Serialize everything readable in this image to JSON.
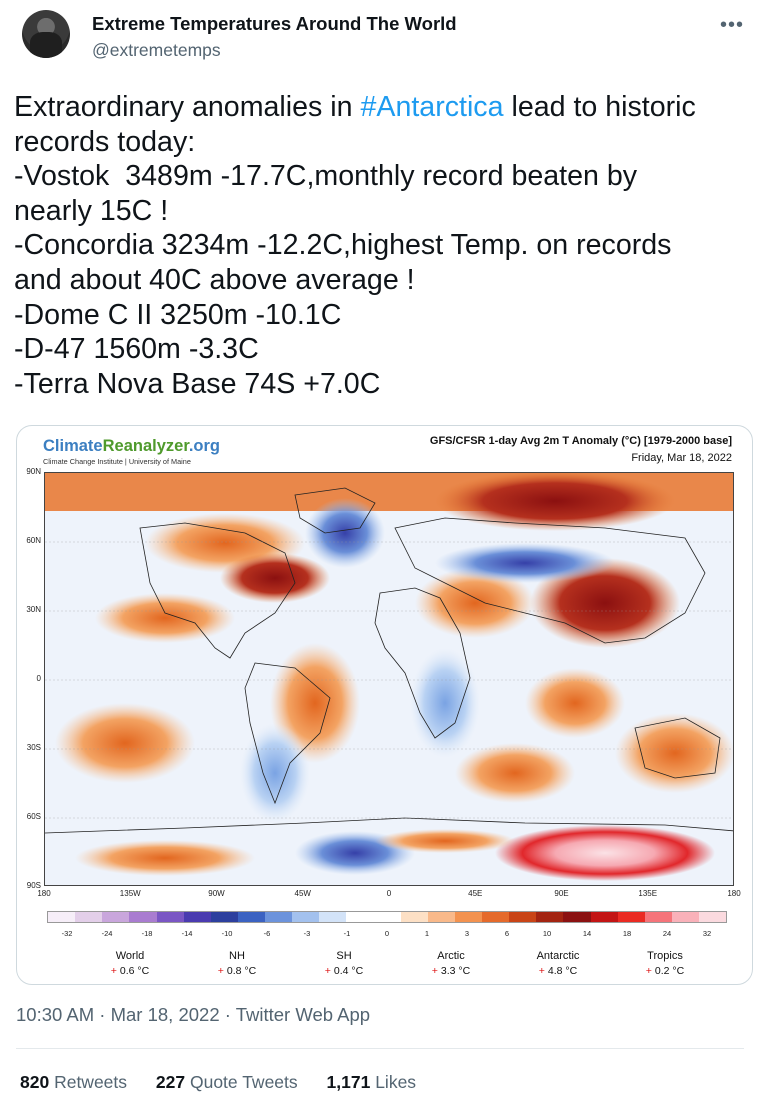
{
  "tweet": {
    "display_name": "Extreme Temperatures Around The World",
    "handle": "@extremetemps",
    "more_icon": "more-horizontal-icon",
    "text_lines": [
      {
        "before": "Extraordinary anomalies in ",
        "hashtag": "#Antarctica",
        "after": " lead to historic"
      },
      {
        "text": "records today:"
      },
      {
        "text": "-Vostok  3489m -17.7C,monthly record beaten by"
      },
      {
        "text": "nearly 15C !"
      },
      {
        "text": "-Concordia 3234m -12.2C,highest Temp. on records"
      },
      {
        "text": "and about 40C above average !"
      },
      {
        "text": "-Dome C II 3250m -10.1C"
      },
      {
        "text": "-D-47 1560m -3.3C"
      },
      {
        "text": "-Terra Nova Base 74S +7.0C"
      }
    ],
    "timestamp": "10:30 AM · Mar 18, 2022 · Twitter Web App",
    "metrics": {
      "retweets_count": "820",
      "retweets_label": "Retweets",
      "quotes_count": "227",
      "quotes_label": "Quote Tweets",
      "likes_count": "1,171",
      "likes_label": "Likes"
    }
  },
  "map_image": {
    "logo": {
      "part1": "Climate",
      "part2": "Reanalyzer",
      "part3": ".org"
    },
    "subtitle": "Climate Change Institute | University of Maine",
    "title": "GFS/CFSR 1-day Avg 2m T Anomaly (°C) [1979-2000 base]",
    "date": "Friday, Mar 18, 2022",
    "lat_labels": [
      "90N",
      "60N",
      "30N",
      "0",
      "30S",
      "60S",
      "90S"
    ],
    "lon_labels": [
      "180",
      "135W",
      "90W",
      "45W",
      "0",
      "45E",
      "90E",
      "135E",
      "180"
    ],
    "colorbar_labels": [
      "-32",
      "-24",
      "-18",
      "-14",
      "-10",
      "-6",
      "-3",
      "-1",
      "0",
      "1",
      "3",
      "6",
      "10",
      "14",
      "18",
      "24",
      "32"
    ],
    "colorbar_colors": [
      "#f6eef8",
      "#e3cfe9",
      "#c9a6dc",
      "#a97cd0",
      "#7a56c4",
      "#4a3bb0",
      "#2c3f9e",
      "#3b62c2",
      "#6c93dc",
      "#a3c1ee",
      "#d3e3f8",
      "#ffffff",
      "#ffffff",
      "#fde0c5",
      "#f9b98a",
      "#f3924f",
      "#e56a2b",
      "#c94416",
      "#a32411",
      "#8b1111",
      "#c31414",
      "#ea2a22",
      "#f5747a",
      "#f9b1b9",
      "#fbdadf"
    ],
    "stats": [
      {
        "name": "World",
        "value": "0.6 °C"
      },
      {
        "name": "NH",
        "value": "0.8 °C"
      },
      {
        "name": "SH",
        "value": "0.4 °C"
      },
      {
        "name": "Arctic",
        "value": "3.3 °C"
      },
      {
        "name": "Antarctic",
        "value": "4.8 °C"
      },
      {
        "name": "Tropics",
        "value": "0.2 °C"
      }
    ],
    "stat_sign": "+"
  }
}
